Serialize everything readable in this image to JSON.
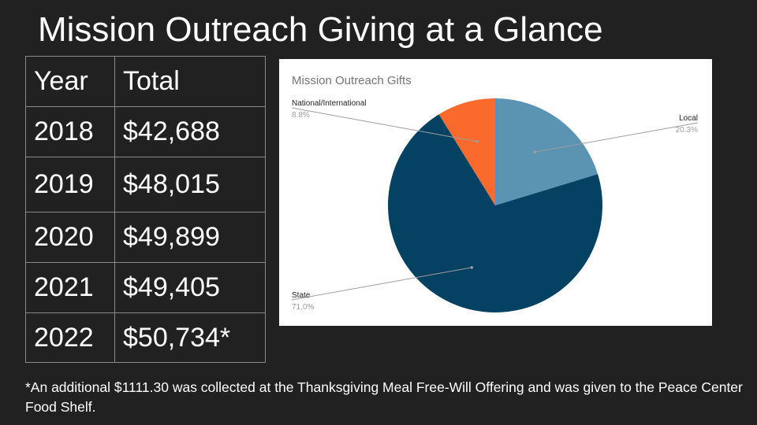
{
  "slide": {
    "title": "Mission Outreach Giving at a Glance",
    "footnote": "*An additional $1111.30 was collected at the Thanksgiving Meal Free-Will Offering and was given to the Peace Center Food Shelf."
  },
  "table": {
    "headers": [
      "Year",
      "Total"
    ],
    "rows": [
      [
        "2018",
        "$42,688"
      ],
      [
        "2019",
        "$48,015"
      ],
      [
        "2020",
        "$49,899"
      ],
      [
        "2021",
        "$49,405"
      ],
      [
        "2022",
        "$50,734*"
      ]
    ]
  },
  "chart_data": {
    "type": "pie",
    "title": "Mission Outreach Gifts",
    "slices": [
      {
        "label": "Local",
        "value": 20.3,
        "pct_label": "20.3%",
        "color": "#5b93b3"
      },
      {
        "label": "State",
        "value": 71.0,
        "pct_label": "71.0%",
        "color": "#054163"
      },
      {
        "label": "National/International",
        "value": 8.8,
        "pct_label": "8.8%",
        "color": "#fa6a2d"
      }
    ]
  },
  "colors": {
    "background": "#212121",
    "text": "#ffffff",
    "table_border": "#8a8a8a"
  }
}
